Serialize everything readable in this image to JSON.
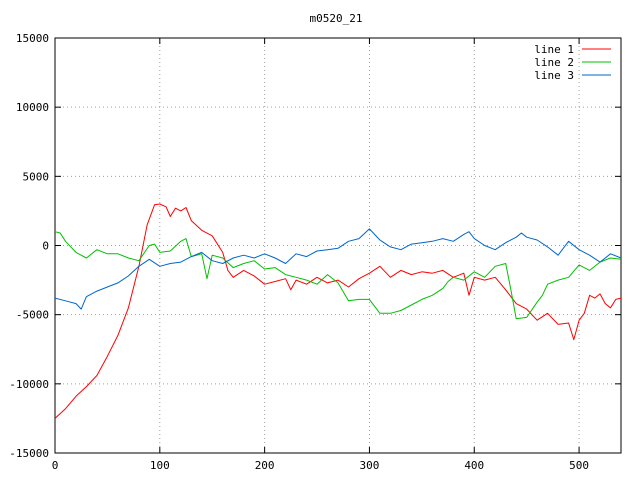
{
  "chart_data": {
    "type": "line",
    "title": "m0520_21",
    "xlim": [
      0,
      540
    ],
    "ylim": [
      -15000,
      15000
    ],
    "x_ticks": [
      0,
      100,
      200,
      300,
      400,
      500
    ],
    "y_ticks": [
      -15000,
      -10000,
      -5000,
      0,
      5000,
      10000,
      15000
    ],
    "grid": true,
    "legend_position": "top-right",
    "series": [
      {
        "name": "line 1",
        "color": "#ff0000",
        "points": [
          [
            0,
            -12500
          ],
          [
            10,
            -11800
          ],
          [
            20,
            -10900
          ],
          [
            30,
            -10200
          ],
          [
            40,
            -9400
          ],
          [
            50,
            -8000
          ],
          [
            60,
            -6500
          ],
          [
            70,
            -4500
          ],
          [
            80,
            -1500
          ],
          [
            88,
            1500
          ],
          [
            95,
            2950
          ],
          [
            100,
            3000
          ],
          [
            106,
            2800
          ],
          [
            110,
            2100
          ],
          [
            115,
            2700
          ],
          [
            120,
            2500
          ],
          [
            125,
            2750
          ],
          [
            130,
            1800
          ],
          [
            140,
            1100
          ],
          [
            150,
            700
          ],
          [
            160,
            -500
          ],
          [
            165,
            -1800
          ],
          [
            170,
            -2300
          ],
          [
            180,
            -1800
          ],
          [
            190,
            -2200
          ],
          [
            200,
            -2800
          ],
          [
            210,
            -2600
          ],
          [
            220,
            -2400
          ],
          [
            225,
            -3200
          ],
          [
            230,
            -2500
          ],
          [
            240,
            -2800
          ],
          [
            250,
            -2300
          ],
          [
            260,
            -2700
          ],
          [
            270,
            -2500
          ],
          [
            280,
            -3000
          ],
          [
            290,
            -2400
          ],
          [
            300,
            -2000
          ],
          [
            310,
            -1500
          ],
          [
            320,
            -2300
          ],
          [
            330,
            -1800
          ],
          [
            340,
            -2100
          ],
          [
            350,
            -1900
          ],
          [
            360,
            -2000
          ],
          [
            370,
            -1800
          ],
          [
            380,
            -2300
          ],
          [
            390,
            -2000
          ],
          [
            395,
            -3600
          ],
          [
            400,
            -2300
          ],
          [
            410,
            -2500
          ],
          [
            420,
            -2300
          ],
          [
            430,
            -3200
          ],
          [
            440,
            -4200
          ],
          [
            450,
            -4600
          ],
          [
            460,
            -5400
          ],
          [
            470,
            -4900
          ],
          [
            480,
            -5700
          ],
          [
            490,
            -5600
          ],
          [
            495,
            -6800
          ],
          [
            500,
            -5400
          ],
          [
            505,
            -4900
          ],
          [
            510,
            -3600
          ],
          [
            515,
            -3800
          ],
          [
            520,
            -3500
          ],
          [
            525,
            -4200
          ],
          [
            530,
            -4500
          ],
          [
            535,
            -3900
          ],
          [
            540,
            -3800
          ]
        ]
      },
      {
        "name": "line 2",
        "color": "#00c000",
        "points": [
          [
            0,
            1000
          ],
          [
            5,
            900
          ],
          [
            10,
            300
          ],
          [
            20,
            -500
          ],
          [
            30,
            -900
          ],
          [
            40,
            -300
          ],
          [
            50,
            -600
          ],
          [
            60,
            -600
          ],
          [
            70,
            -900
          ],
          [
            80,
            -1100
          ],
          [
            90,
            0
          ],
          [
            95,
            100
          ],
          [
            100,
            -500
          ],
          [
            110,
            -400
          ],
          [
            120,
            300
          ],
          [
            125,
            500
          ],
          [
            130,
            -800
          ],
          [
            140,
            -600
          ],
          [
            145,
            -2400
          ],
          [
            150,
            -700
          ],
          [
            160,
            -900
          ],
          [
            170,
            -1600
          ],
          [
            180,
            -1300
          ],
          [
            190,
            -1100
          ],
          [
            200,
            -1700
          ],
          [
            210,
            -1600
          ],
          [
            220,
            -2100
          ],
          [
            230,
            -2300
          ],
          [
            240,
            -2500
          ],
          [
            250,
            -2800
          ],
          [
            260,
            -2100
          ],
          [
            270,
            -2700
          ],
          [
            280,
            -4000
          ],
          [
            290,
            -3900
          ],
          [
            300,
            -3900
          ],
          [
            310,
            -4900
          ],
          [
            320,
            -4900
          ],
          [
            330,
            -4700
          ],
          [
            340,
            -4300
          ],
          [
            350,
            -3900
          ],
          [
            360,
            -3600
          ],
          [
            370,
            -3100
          ],
          [
            375,
            -2600
          ],
          [
            380,
            -2300
          ],
          [
            390,
            -2500
          ],
          [
            400,
            -1900
          ],
          [
            410,
            -2300
          ],
          [
            420,
            -1500
          ],
          [
            430,
            -1300
          ],
          [
            435,
            -3200
          ],
          [
            440,
            -5300
          ],
          [
            450,
            -5200
          ],
          [
            460,
            -4100
          ],
          [
            465,
            -3600
          ],
          [
            470,
            -2800
          ],
          [
            480,
            -2500
          ],
          [
            490,
            -2300
          ],
          [
            500,
            -1400
          ],
          [
            510,
            -1800
          ],
          [
            520,
            -1200
          ],
          [
            530,
            -900
          ],
          [
            540,
            -1000
          ]
        ]
      },
      {
        "name": "line 3",
        "color": "#0066cc",
        "points": [
          [
            0,
            -3800
          ],
          [
            10,
            -4000
          ],
          [
            20,
            -4200
          ],
          [
            25,
            -4600
          ],
          [
            30,
            -3700
          ],
          [
            40,
            -3300
          ],
          [
            50,
            -3000
          ],
          [
            60,
            -2700
          ],
          [
            70,
            -2200
          ],
          [
            80,
            -1500
          ],
          [
            90,
            -1000
          ],
          [
            100,
            -1500
          ],
          [
            110,
            -1300
          ],
          [
            120,
            -1200
          ],
          [
            130,
            -800
          ],
          [
            140,
            -500
          ],
          [
            150,
            -1100
          ],
          [
            160,
            -1300
          ],
          [
            170,
            -900
          ],
          [
            180,
            -700
          ],
          [
            190,
            -900
          ],
          [
            200,
            -600
          ],
          [
            210,
            -900
          ],
          [
            220,
            -1300
          ],
          [
            230,
            -600
          ],
          [
            240,
            -800
          ],
          [
            250,
            -400
          ],
          [
            260,
            -300
          ],
          [
            270,
            -200
          ],
          [
            280,
            300
          ],
          [
            290,
            500
          ],
          [
            300,
            1200
          ],
          [
            310,
            400
          ],
          [
            320,
            -100
          ],
          [
            330,
            -300
          ],
          [
            340,
            100
          ],
          [
            350,
            200
          ],
          [
            360,
            300
          ],
          [
            370,
            500
          ],
          [
            380,
            300
          ],
          [
            390,
            800
          ],
          [
            395,
            1000
          ],
          [
            400,
            500
          ],
          [
            410,
            0
          ],
          [
            420,
            -300
          ],
          [
            430,
            200
          ],
          [
            440,
            600
          ],
          [
            445,
            900
          ],
          [
            450,
            600
          ],
          [
            460,
            400
          ],
          [
            470,
            -100
          ],
          [
            480,
            -700
          ],
          [
            490,
            300
          ],
          [
            500,
            -300
          ],
          [
            510,
            -700
          ],
          [
            520,
            -1200
          ],
          [
            530,
            -600
          ],
          [
            540,
            -900
          ]
        ]
      }
    ]
  }
}
